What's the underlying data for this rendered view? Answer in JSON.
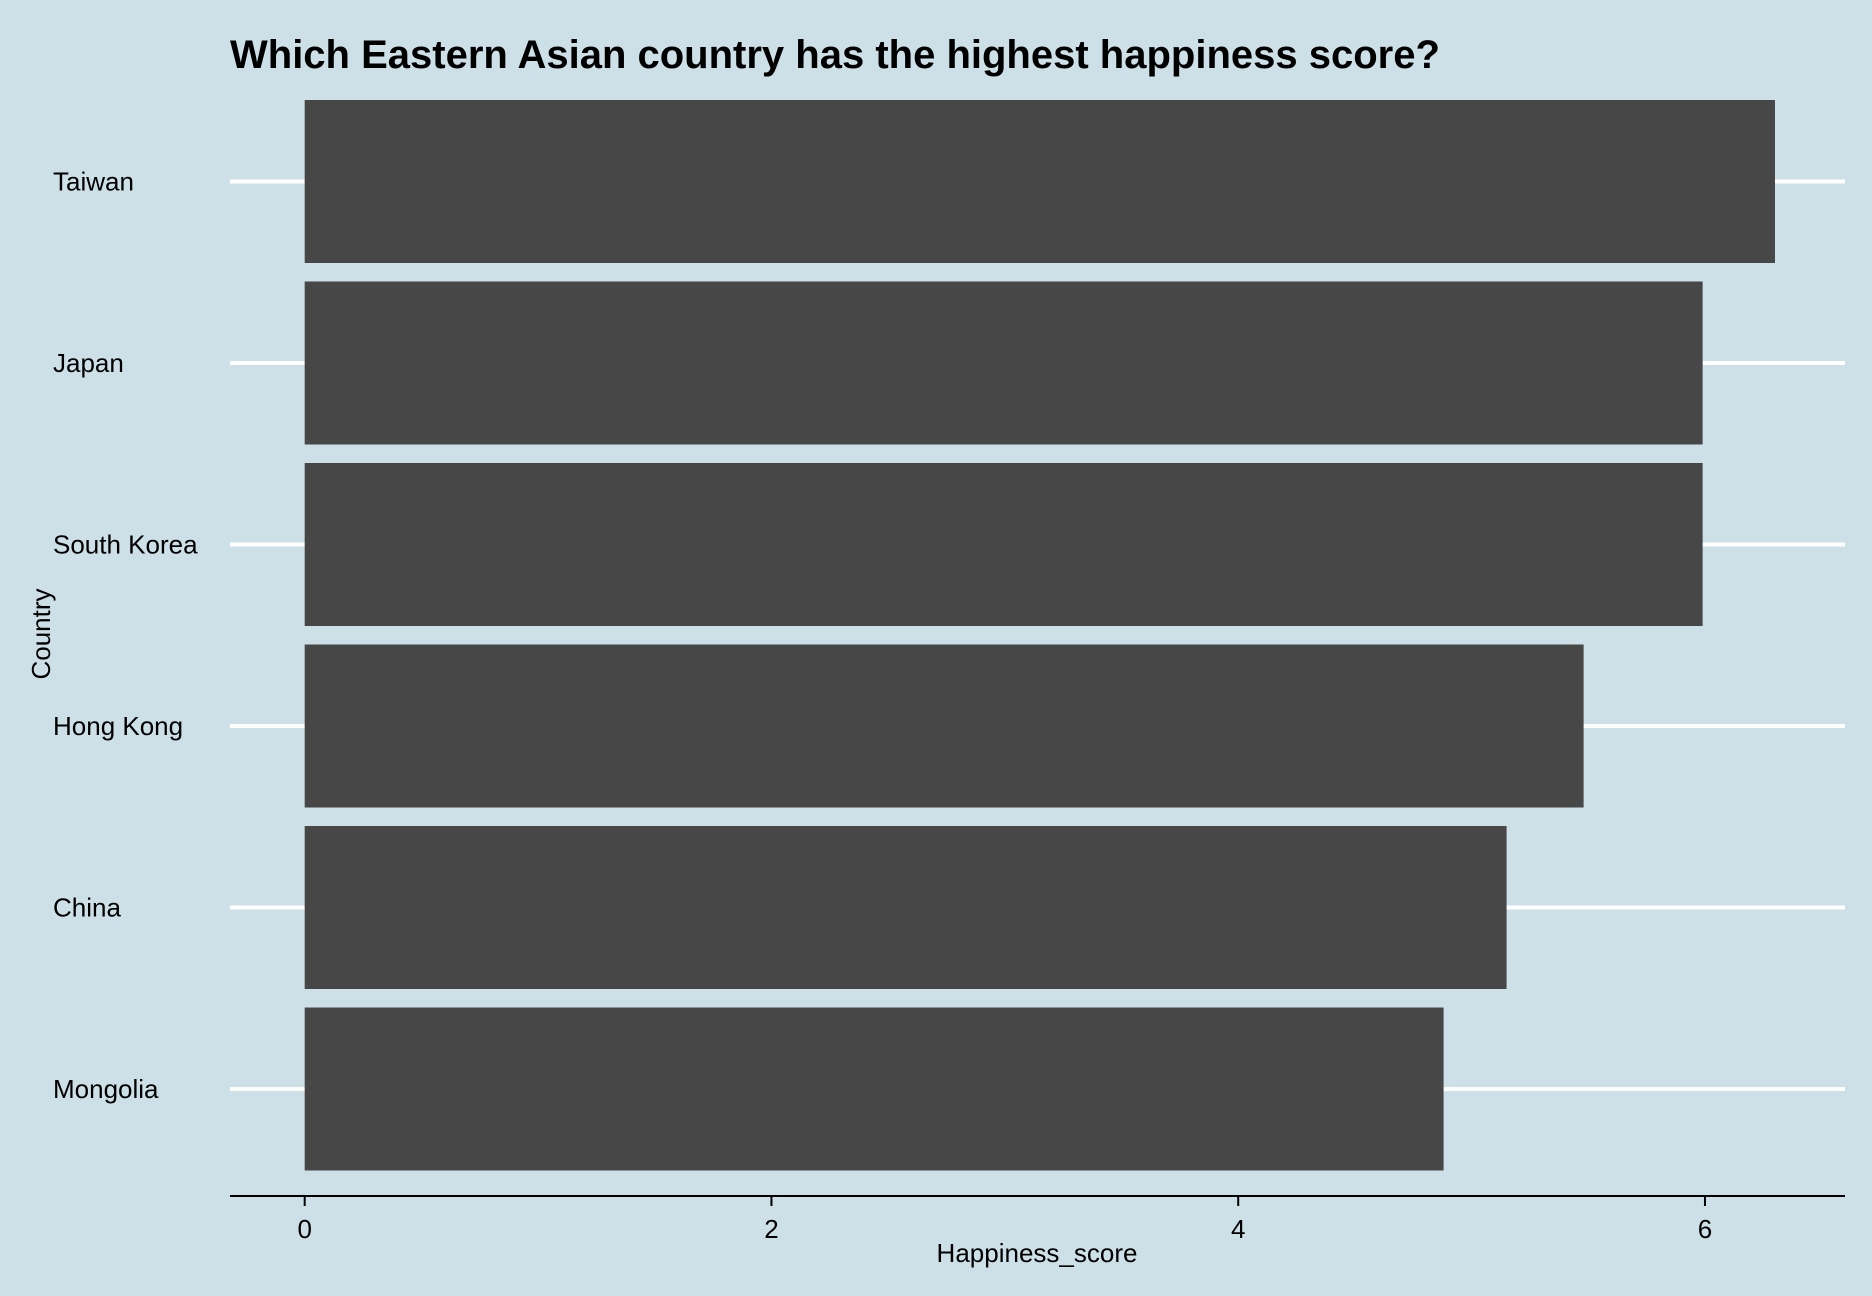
{
  "chart_data": {
    "type": "bar",
    "orientation": "horizontal",
    "title": "Which Eastern Asian country has the highest happiness score?",
    "xlabel": "Happiness_score",
    "ylabel": "Country",
    "categories": [
      "Taiwan",
      "Japan",
      "South Korea",
      "Hong Kong",
      "China",
      "Mongolia"
    ],
    "values": [
      6.3,
      5.99,
      5.99,
      5.48,
      5.15,
      4.88
    ],
    "xlim": [
      -0.32,
      6.6
    ],
    "xticks": [
      0,
      2,
      4,
      6
    ],
    "grid": "horizontal",
    "colors": {
      "background": "#cde0e7",
      "bar": "#474747",
      "grid": "#ffffff",
      "axis": "#000000",
      "text": "#000000"
    }
  }
}
